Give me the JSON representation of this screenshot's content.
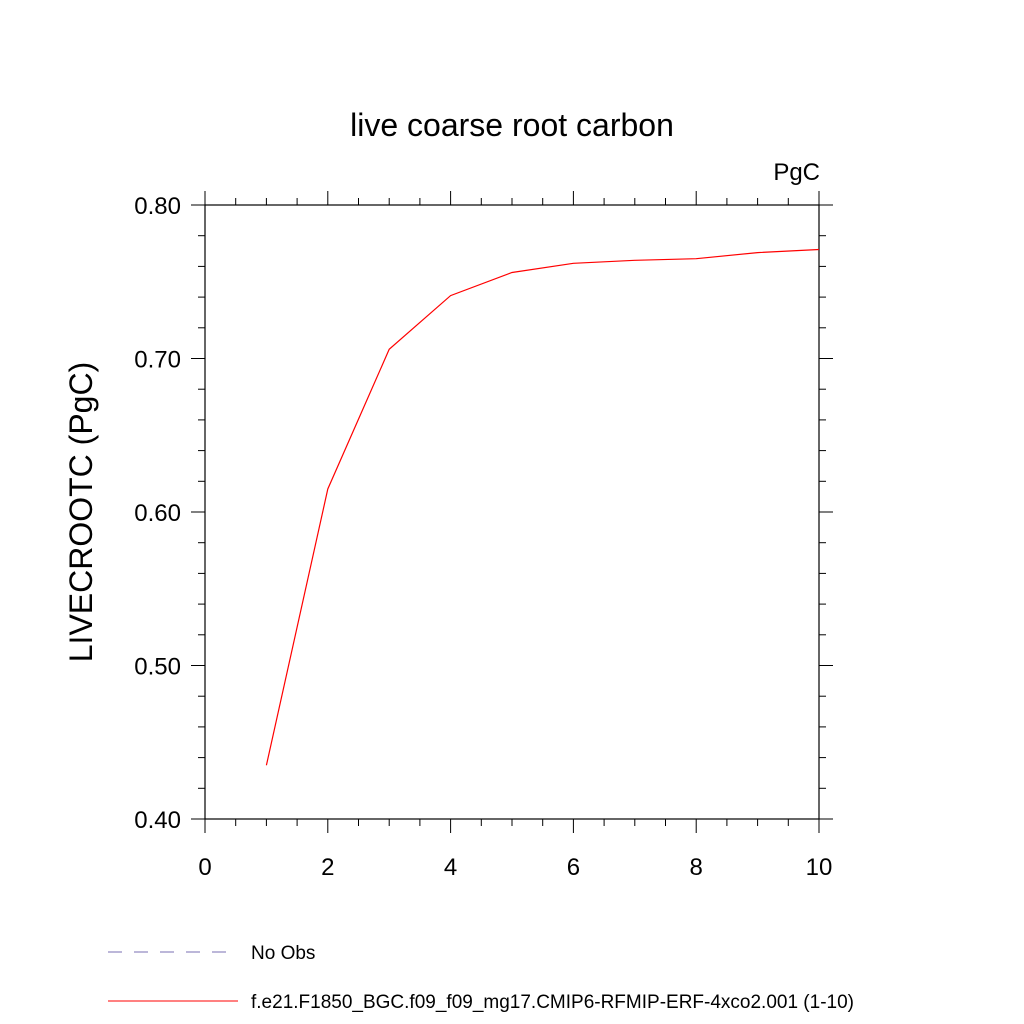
{
  "chart_data": {
    "type": "line",
    "title": "live coarse root carbon",
    "units_label": "PgC",
    "xlabel": "",
    "ylabel": "LIVECROOTC  (PgC)",
    "xlim": [
      0,
      10
    ],
    "ylim": [
      0.4,
      0.8
    ],
    "x_ticks": [
      "0",
      "2",
      "4",
      "6",
      "8",
      "10"
    ],
    "y_ticks": [
      "0.40",
      "0.50",
      "0.60",
      "0.70",
      "0.80"
    ],
    "grid": false,
    "legend_position": "bottom",
    "series": [
      {
        "name": "f.e21.F1850_BGC.f09_f09_mg17.CMIP6-RFMIP-ERF-4xco2.001 (1-10)",
        "color": "#ff0000",
        "style": "solid",
        "x": [
          1,
          2,
          3,
          4,
          5,
          6,
          7,
          8,
          9,
          10
        ],
        "y": [
          0.435,
          0.615,
          0.706,
          0.741,
          0.756,
          0.762,
          0.764,
          0.765,
          0.769,
          0.771
        ]
      }
    ],
    "legend": [
      {
        "label": "No Obs",
        "color": "#7a6fb3",
        "style": "dashed"
      },
      {
        "label": "f.e21.F1850_BGC.f09_f09_mg17.CMIP6-RFMIP-ERF-4xco2.001 (1-10)",
        "color": "#ff0000",
        "style": "solid"
      }
    ]
  }
}
